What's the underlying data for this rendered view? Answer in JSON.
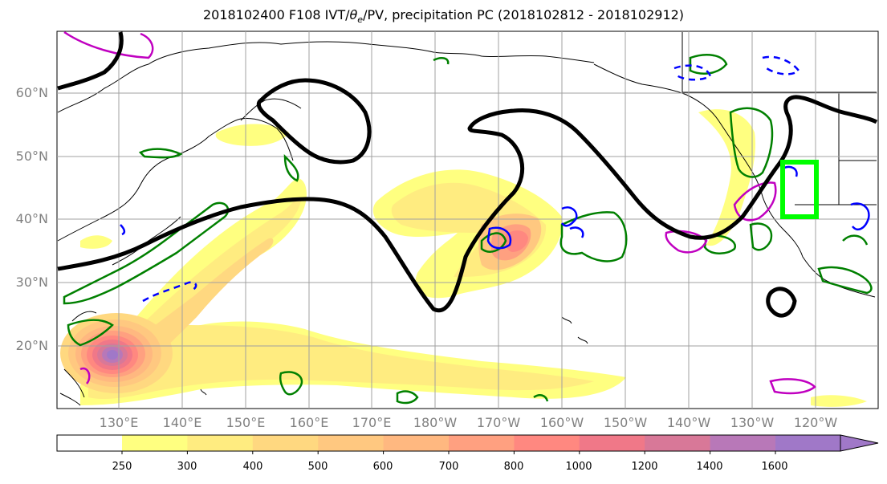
{
  "title": "2018102400 F108 IVT/θe/PV, precipitation PC (2018102812 - 2018102912)",
  "lat_labels": [
    "60°N",
    "50°N",
    "40°N",
    "30°N",
    "20°N"
  ],
  "lon_labels": [
    "130°E",
    "140°E",
    "150°E",
    "160°E",
    "170°E",
    "180°W",
    "170°W",
    "160°W",
    "150°W",
    "140°W",
    "130°W",
    "120°W"
  ],
  "colorbar": {
    "levels": [
      "250",
      "300",
      "400",
      "500",
      "600",
      "700",
      "800",
      "1000",
      "1200",
      "1400",
      "1600"
    ],
    "colors": [
      "#ffff80",
      "#ffec80",
      "#ffd880",
      "#ffc880",
      "#ffb880",
      "#ffa080",
      "#ff8880",
      "#f07888",
      "#d87898",
      "#b878b8",
      "#a078c8"
    ]
  },
  "colors": {
    "ivt_contour": "#000000",
    "theta_e_contour": "#008000",
    "pv_contour_positive": "#c000c0",
    "pv_contour_negative": "#0000ff",
    "highlight_box": "#00ff00",
    "grid": "#a0a0a0",
    "axis_text": "#808080"
  }
}
